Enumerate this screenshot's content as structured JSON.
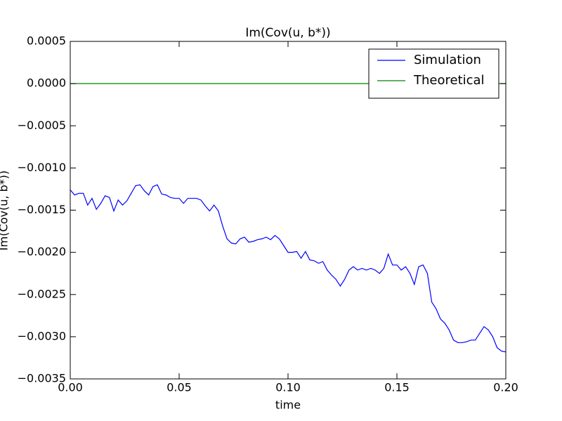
{
  "chart_data": {
    "type": "line",
    "title": "Im(Cov(u, b*))",
    "x_label": "time",
    "y_label": "Im(Cov(u, b*))",
    "xlim": [
      0,
      0.2
    ],
    "ylim": [
      -0.0035,
      0.0005
    ],
    "xticks": [
      {
        "value": 0,
        "label": "0.00"
      },
      0.05,
      {
        "value": 0.1,
        "label": "0.10"
      },
      0.15,
      {
        "value": 0.2,
        "label": "0.20"
      }
    ],
    "yticks": [
      0.0005,
      {
        "value": 0,
        "label": "0.0000"
      },
      {
        "value": -0.0005,
        "label": "−0.0005"
      },
      {
        "value": -0.001,
        "label": "−0.0010"
      },
      {
        "value": -0.0015,
        "label": "−0.0015"
      },
      {
        "value": -0.002,
        "label": "−0.0020"
      },
      {
        "value": -0.0025,
        "label": "−0.0025"
      },
      {
        "value": -0.003,
        "label": "−0.0030"
      },
      {
        "value": -0.0035,
        "label": "−0.0035"
      }
    ],
    "legend": "upper right",
    "series": [
      {
        "name": "Simulation",
        "color": "#0000ff",
        "x": [
          0,
          0.002,
          0.004,
          0.006,
          0.008,
          0.01,
          0.012,
          0.014,
          0.016,
          0.018,
          0.02,
          0.022,
          0.024,
          0.026,
          0.028,
          0.03,
          0.032,
          0.034,
          0.036,
          0.038,
          0.04,
          0.042,
          0.044,
          0.046,
          0.048,
          0.05,
          0.052,
          0.054,
          0.056,
          0.058,
          0.06,
          0.062,
          0.064,
          0.066,
          0.068,
          0.07,
          0.072,
          0.074,
          0.076,
          0.078,
          0.08,
          0.082,
          0.084,
          0.086,
          0.088,
          0.09,
          0.092,
          0.094,
          0.096,
          0.098,
          0.1,
          0.102,
          0.104,
          0.106,
          0.108,
          0.11,
          0.112,
          0.114,
          0.116,
          0.118,
          0.12,
          0.122,
          0.124,
          0.126,
          0.128,
          0.13,
          0.132,
          0.134,
          0.136,
          0.138,
          0.14,
          0.142,
          0.144,
          0.146,
          0.148,
          0.15,
          0.152,
          0.154,
          0.156,
          0.158,
          0.16,
          0.162,
          0.164,
          0.166,
          0.168,
          0.17,
          0.172,
          0.174,
          0.176,
          0.178,
          0.18,
          0.182,
          0.184,
          0.186,
          0.188,
          0.19,
          0.192,
          0.194,
          0.196,
          0.198,
          0.2
        ],
        "values": [
          -0.00126,
          -0.00132,
          -0.0013,
          -0.0013,
          -0.00144,
          -0.00136,
          -0.00149,
          -0.00142,
          -0.00133,
          -0.00135,
          -0.00151,
          -0.00138,
          -0.00144,
          -0.00139,
          -0.0013,
          -0.00121,
          -0.0012,
          -0.00127,
          -0.00132,
          -0.00122,
          -0.0012,
          -0.00131,
          -0.00132,
          -0.00135,
          -0.00136,
          -0.00136,
          -0.00142,
          -0.00136,
          -0.00136,
          -0.00136,
          -0.00138,
          -0.00145,
          -0.00151,
          -0.00144,
          -0.00151,
          -0.00169,
          -0.00184,
          -0.00189,
          -0.0019,
          -0.00184,
          -0.00182,
          -0.00188,
          -0.00187,
          -0.00185,
          -0.00184,
          -0.00182,
          -0.00185,
          -0.0018,
          -0.00184,
          -0.00192,
          -0.002,
          -0.002,
          -0.00199,
          -0.00207,
          -0.00199,
          -0.00209,
          -0.0021,
          -0.00213,
          -0.00211,
          -0.00221,
          -0.00227,
          -0.00232,
          -0.0024,
          -0.00232,
          -0.00221,
          -0.00217,
          -0.00221,
          -0.00219,
          -0.00221,
          -0.00219,
          -0.00221,
          -0.00225,
          -0.00219,
          -0.00202,
          -0.00215,
          -0.00215,
          -0.00221,
          -0.00217,
          -0.00225,
          -0.00238,
          -0.00217,
          -0.00215,
          -0.00225,
          -0.00259,
          -0.00267,
          -0.00279,
          -0.00284,
          -0.00292,
          -0.00304,
          -0.00307,
          -0.00307,
          -0.00306,
          -0.00304,
          -0.00304,
          -0.00296,
          -0.00288,
          -0.00292,
          -0.003,
          -0.00313,
          -0.00317,
          -0.00318
        ]
      },
      {
        "name": "Theoretical",
        "color": "#008000",
        "x": [
          0,
          0.2
        ],
        "values": [
          0,
          0
        ]
      }
    ]
  }
}
